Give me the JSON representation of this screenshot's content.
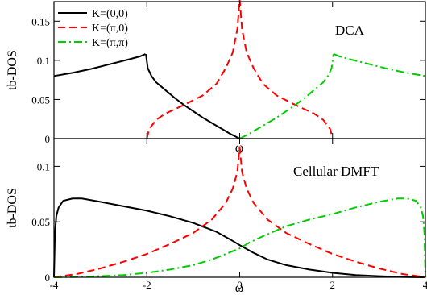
{
  "chart_data": [
    {
      "type": "line",
      "panel_label": "DCA",
      "ylabel": "tb-DOS",
      "xlabel": "ω",
      "xlim": [
        -4,
        4
      ],
      "ylim": [
        0,
        0.175
      ],
      "yticks": [
        0,
        0.05,
        0.1,
        0.15
      ],
      "ytick_labels": [
        "0",
        "0.05",
        "0.1",
        "0.15"
      ],
      "legend_position": "top-left",
      "series": [
        {
          "name": "K=(0,0)",
          "color": "#000000",
          "style": "solid",
          "segments": [
            [
              [
                -4,
                0.08
              ],
              [
                -3.6,
                0.084
              ],
              [
                -3.2,
                0.089
              ],
              [
                -2.8,
                0.095
              ],
              [
                -2.4,
                0.101
              ],
              [
                -2.15,
                0.105
              ],
              [
                -2.03,
                0.108
              ]
            ],
            [
              [
                -2.02,
                0.108
              ],
              [
                -1.98,
                0.09
              ],
              [
                -1.9,
                0.08
              ],
              [
                -1.8,
                0.072
              ],
              [
                -1.6,
                0.062
              ],
              [
                -1.4,
                0.052
              ],
              [
                -1.2,
                0.043
              ],
              [
                -1.0,
                0.035
              ],
              [
                -0.8,
                0.027
              ],
              [
                -0.6,
                0.02
              ],
              [
                -0.4,
                0.013
              ],
              [
                -0.2,
                0.006
              ],
              [
                0,
                0
              ]
            ]
          ]
        },
        {
          "name": "K=(π,0)",
          "color": "#ff0000",
          "style": "dashed",
          "segments": [
            [
              [
                -2,
                0
              ],
              [
                -1.95,
                0.012
              ],
              [
                -1.8,
                0.024
              ],
              [
                -1.6,
                0.032
              ],
              [
                -1.2,
                0.043
              ],
              [
                -0.8,
                0.055
              ],
              [
                -0.5,
                0.07
              ],
              [
                -0.3,
                0.09
              ],
              [
                -0.15,
                0.11
              ],
              [
                -0.05,
                0.14
              ],
              [
                0,
                0.178
              ]
            ],
            [
              [
                0,
                0.178
              ],
              [
                0.05,
                0.14
              ],
              [
                0.15,
                0.11
              ],
              [
                0.3,
                0.09
              ],
              [
                0.5,
                0.07
              ],
              [
                0.8,
                0.055
              ],
              [
                1.2,
                0.043
              ],
              [
                1.6,
                0.032
              ],
              [
                1.8,
                0.024
              ],
              [
                1.95,
                0.012
              ],
              [
                2,
                0
              ]
            ]
          ]
        },
        {
          "name": "K=(π,π)",
          "color": "#00cc00",
          "style": "dashdot",
          "segments": [
            [
              [
                0,
                0
              ],
              [
                0.2,
                0.006
              ],
              [
                0.4,
                0.013
              ],
              [
                0.6,
                0.02
              ],
              [
                0.8,
                0.027
              ],
              [
                1.0,
                0.035
              ],
              [
                1.2,
                0.043
              ],
              [
                1.4,
                0.052
              ],
              [
                1.6,
                0.062
              ],
              [
                1.8,
                0.072
              ],
              [
                1.9,
                0.08
              ],
              [
                1.98,
                0.09
              ],
              [
                2.02,
                0.108
              ]
            ],
            [
              [
                2.03,
                0.108
              ],
              [
                2.15,
                0.105
              ],
              [
                2.4,
                0.101
              ],
              [
                2.8,
                0.095
              ],
              [
                3.2,
                0.089
              ],
              [
                3.6,
                0.084
              ],
              [
                4,
                0.08
              ]
            ]
          ]
        }
      ]
    },
    {
      "type": "line",
      "panel_label": "Cellular DMFT",
      "ylabel": "tb-DOS",
      "xlabel": "ω",
      "xlim": [
        -4,
        4
      ],
      "ylim": [
        0,
        0.125
      ],
      "yticks": [
        0,
        0.05,
        0.1
      ],
      "ytick_labels": [
        "0",
        "0.05",
        "0.1"
      ],
      "xticks": [
        -4,
        -2,
        0,
        2,
        4
      ],
      "xtick_labels": [
        "-4",
        "-2",
        "0",
        "2",
        "4"
      ],
      "series": [
        {
          "name": "K=(0,0)",
          "color": "#000000",
          "style": "solid",
          "segments": [
            [
              [
                -4,
                0
              ],
              [
                -3.98,
                0.04
              ],
              [
                -3.95,
                0.055
              ],
              [
                -3.9,
                0.063
              ],
              [
                -3.8,
                0.069
              ],
              [
                -3.6,
                0.071
              ],
              [
                -3.4,
                0.071
              ],
              [
                -3.0,
                0.068
              ],
              [
                -2.5,
                0.064
              ],
              [
                -2.0,
                0.06
              ],
              [
                -1.5,
                0.055
              ],
              [
                -1.0,
                0.049
              ],
              [
                -0.5,
                0.041
              ],
              [
                -0.2,
                0.034
              ],
              [
                0,
                0.029
              ],
              [
                0.3,
                0.022
              ],
              [
                0.6,
                0.016
              ],
              [
                1.0,
                0.011
              ],
              [
                1.5,
                0.007
              ],
              [
                2.0,
                0.004
              ],
              [
                2.5,
                0.002
              ],
              [
                3.0,
                0.001
              ],
              [
                3.5,
                0.0003
              ],
              [
                4,
                0
              ]
            ]
          ]
        },
        {
          "name": "K=(π,0)",
          "color": "#ff0000",
          "style": "dashed",
          "segments": [
            [
              [
                -4,
                0
              ],
              [
                -3.5,
                0.003
              ],
              [
                -3.0,
                0.008
              ],
              [
                -2.5,
                0.014
              ],
              [
                -2.0,
                0.021
              ],
              [
                -1.5,
                0.03
              ],
              [
                -1.0,
                0.04
              ],
              [
                -0.6,
                0.052
              ],
              [
                -0.3,
                0.067
              ],
              [
                -0.15,
                0.08
              ],
              [
                -0.05,
                0.095
              ],
              [
                0,
                0.118
              ]
            ],
            [
              [
                0,
                0.118
              ],
              [
                0.05,
                0.095
              ],
              [
                0.15,
                0.08
              ],
              [
                0.3,
                0.067
              ],
              [
                0.6,
                0.052
              ],
              [
                1.0,
                0.04
              ],
              [
                1.5,
                0.03
              ],
              [
                2.0,
                0.021
              ],
              [
                2.5,
                0.014
              ],
              [
                3.0,
                0.008
              ],
              [
                3.5,
                0.003
              ],
              [
                4,
                0
              ]
            ]
          ]
        },
        {
          "name": "K=(π,π)",
          "color": "#00cc00",
          "style": "dashdot",
          "segments": [
            [
              [
                -4,
                0
              ],
              [
                -3.5,
                0.0003
              ],
              [
                -3.0,
                0.001
              ],
              [
                -2.5,
                0.002
              ],
              [
                -2.0,
                0.004
              ],
              [
                -1.5,
                0.007
              ],
              [
                -1.0,
                0.011
              ],
              [
                -0.6,
                0.016
              ],
              [
                -0.3,
                0.021
              ],
              [
                0,
                0.026
              ],
              [
                0.2,
                0.031
              ],
              [
                0.5,
                0.037
              ],
              [
                1.0,
                0.046
              ],
              [
                1.5,
                0.052
              ],
              [
                2.0,
                0.057
              ],
              [
                2.5,
                0.063
              ],
              [
                3.0,
                0.068
              ],
              [
                3.4,
                0.071
              ],
              [
                3.6,
                0.071
              ],
              [
                3.8,
                0.069
              ],
              [
                3.9,
                0.063
              ],
              [
                3.95,
                0.055
              ],
              [
                3.98,
                0.04
              ],
              [
                4,
                0
              ]
            ]
          ]
        }
      ]
    }
  ]
}
